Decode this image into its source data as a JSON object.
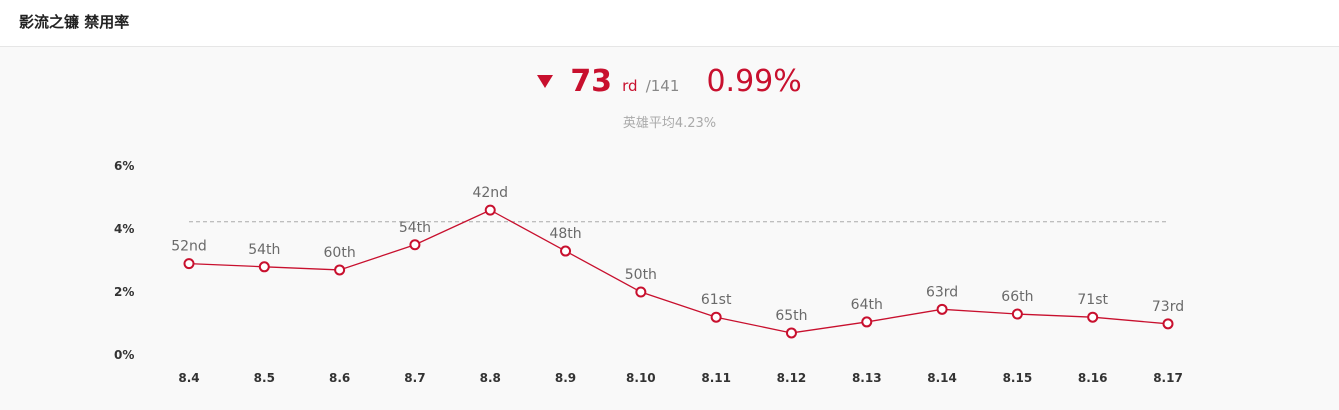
{
  "header": {
    "title": "影流之镰 禁用率"
  },
  "summary": {
    "trend_icon": "triangle-down-icon",
    "rank": "73",
    "rank_suffix": "rd",
    "rank_total": "/141",
    "rate": "0.99%",
    "average_text": "英雄平均4.23%"
  },
  "colors": {
    "accent": "#c8102e",
    "average_line": "#aaaaaa",
    "muted_text": "#6a6a6a"
  },
  "chart_data": {
    "type": "line",
    "title": "",
    "xlabel": "",
    "ylabel": "",
    "categories": [
      "8.4",
      "8.5",
      "8.6",
      "8.7",
      "8.8",
      "8.9",
      "8.10",
      "8.11",
      "8.12",
      "8.13",
      "8.14",
      "8.15",
      "8.16",
      "8.17"
    ],
    "series": [
      {
        "values": [
          2.9,
          2.8,
          2.7,
          3.5,
          4.6,
          3.3,
          2.0,
          1.2,
          0.7,
          1.05,
          1.45,
          1.3,
          1.2,
          0.99
        ],
        "labels": [
          "52nd",
          "54th",
          "60th",
          "54th",
          "42nd",
          "48th",
          "50th",
          "61st",
          "65th",
          "64th",
          "63rd",
          "66th",
          "71st",
          "73rd"
        ]
      }
    ],
    "average": 4.23,
    "ylim": [
      0,
      6
    ],
    "yticks": [
      {
        "value": 0,
        "label": "0%"
      },
      {
        "value": 2,
        "label": "2%"
      },
      {
        "value": 4,
        "label": "4%"
      },
      {
        "value": 6,
        "label": "6%"
      }
    ],
    "grid": false,
    "legend": "none"
  }
}
